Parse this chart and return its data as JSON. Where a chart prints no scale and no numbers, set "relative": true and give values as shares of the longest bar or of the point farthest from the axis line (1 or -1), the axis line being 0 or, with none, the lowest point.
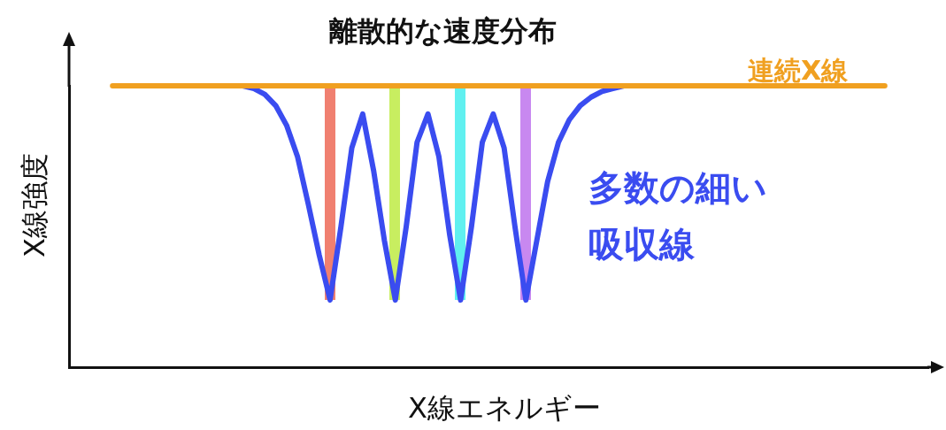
{
  "chart_data": {
    "type": "line",
    "relative": true,
    "title": "離散的な速度分布",
    "xlabel": "X線エネルギー",
    "ylabel": "X線強度",
    "legend": false,
    "grid": false,
    "marker": "none",
    "categories": [
      null,
      null,
      null,
      null,
      null,
      null,
      null,
      null,
      null,
      null,
      null,
      null,
      null,
      null,
      null,
      null,
      null,
      null,
      null,
      null,
      null,
      null,
      null,
      null,
      null,
      null,
      null,
      null,
      null,
      null,
      null,
      null,
      null,
      null,
      null,
      null,
      null,
      null,
      null,
      null,
      null,
      null,
      null,
      null,
      null,
      null,
      null,
      null,
      null,
      null,
      null,
      null,
      null,
      null,
      null,
      null,
      null,
      null,
      null,
      null,
      null,
      null,
      null,
      null,
      null,
      null,
      null,
      null,
      null,
      null,
      null,
      null,
      null,
      null,
      null,
      null,
      null,
      null,
      null,
      null
    ],
    "series": [
      {
        "name": "連続X線",
        "color": "#f0a020",
        "values": [
          null,
          null,
          null,
          null,
          1,
          1,
          1,
          1,
          1,
          1,
          1,
          1,
          1,
          1,
          1,
          1,
          1,
          1,
          1,
          1,
          1,
          1,
          1,
          1,
          1,
          1,
          1,
          1,
          1,
          1,
          1,
          1,
          1,
          1,
          1,
          1,
          1,
          1,
          1,
          1,
          1,
          1,
          1,
          1,
          1,
          1,
          1,
          1,
          1,
          1,
          1,
          1,
          1,
          1,
          1,
          1,
          1,
          1,
          1,
          1,
          1,
          1,
          1,
          1,
          1,
          1,
          1,
          1,
          1,
          1,
          1,
          1,
          1,
          1,
          1,
          1,
          null,
          null,
          null,
          null
        ]
      },
      {
        "name": "多数の細い吸収線",
        "color": "#3a4cf0",
        "values": [
          null,
          null,
          null,
          null,
          null,
          null,
          null,
          null,
          null,
          null,
          null,
          null,
          null,
          null,
          null,
          null,
          1,
          0.99,
          0.97,
          0.93,
          0.86,
          0.75,
          0.58,
          0.4,
          0.24,
          0.5,
          0.78,
          0.9,
          0.7,
          0.45,
          0.24,
          0.5,
          0.8,
          0.9,
          0.75,
          0.47,
          0.24,
          0.5,
          0.8,
          0.9,
          0.78,
          0.5,
          0.24,
          0.45,
          0.66,
          0.8,
          0.88,
          0.93,
          0.96,
          0.98,
          0.99,
          1,
          null,
          null,
          null,
          null,
          null,
          null,
          null,
          null,
          null,
          null,
          null,
          null,
          null,
          null,
          null,
          null,
          null,
          null,
          null,
          null,
          null,
          null,
          null,
          null,
          null,
          null,
          null,
          null
        ]
      }
    ]
  }
}
